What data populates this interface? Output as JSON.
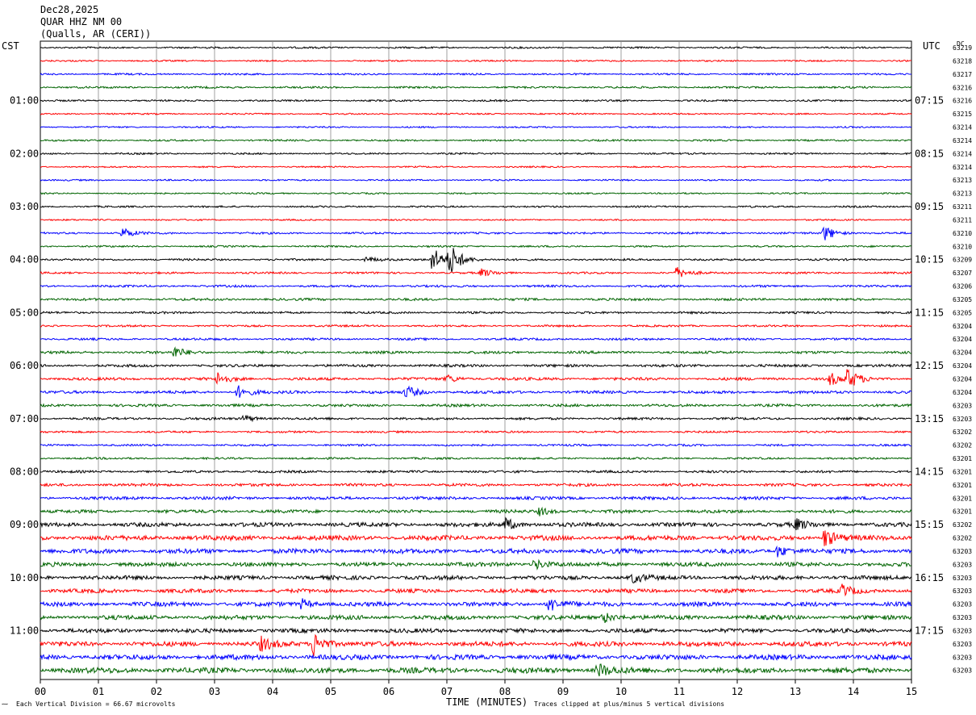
{
  "header": {
    "date": "Dec28,2025",
    "station": "QUAR HHZ NM 00",
    "location": "(Qualls, AR (CERI))"
  },
  "left_axis_label": "CST",
  "right_axis_label": "UTC",
  "dc_label": "DC",
  "footer": {
    "division_note": "Each Vertical Division =   66.67 microvolts",
    "xlabel": "TIME (MINUTES)",
    "clip_note": "Traces clipped at plus/minus 5 vertical divisions"
  },
  "chart_data": {
    "type": "line",
    "title": "QUAR HHZ NM 00",
    "xlabel": "TIME (MINUTES)",
    "xlim": [
      0,
      15
    ],
    "x_ticks": [
      "00",
      "01",
      "02",
      "03",
      "04",
      "05",
      "06",
      "07",
      "08",
      "09",
      "10",
      "11",
      "12",
      "13",
      "14",
      "15"
    ],
    "trace_count": 48,
    "trace_colors": [
      "#000000",
      "#ff0000",
      "#0000ff",
      "#006400"
    ],
    "cst_hour_labels": [
      "01:00",
      "02:00",
      "03:00",
      "04:00",
      "05:00",
      "06:00",
      "07:00",
      "08:00",
      "09:00",
      "10:00",
      "11:00"
    ],
    "utc_labels": [
      "07:15",
      "08:15",
      "09:15",
      "10:15",
      "11:15",
      "12:15",
      "13:15",
      "14:15",
      "15:15",
      "16:15",
      "17:15"
    ],
    "hour_label_trace_start": 4,
    "dc_values": [
      "63219",
      "63218",
      "63217",
      "63216",
      "63216",
      "63215",
      "63214",
      "63214",
      "63214",
      "63214",
      "63213",
      "63213",
      "63211",
      "63211",
      "63210",
      "63210",
      "63209",
      "63207",
      "63206",
      "63205",
      "63205",
      "63204",
      "63204",
      "63204",
      "63204",
      "63204",
      "63204",
      "63203",
      "63203",
      "63202",
      "63202",
      "63201",
      "63201",
      "63201",
      "63201",
      "63201",
      "63202",
      "63202",
      "63203",
      "63203",
      "63203",
      "63203",
      "63203",
      "63203",
      "63203",
      "63203",
      "63203",
      "63203"
    ],
    "noise_level": [
      0.8,
      0.7,
      0.8,
      0.9,
      0.8,
      0.7,
      0.7,
      0.8,
      0.8,
      0.7,
      0.7,
      0.7,
      0.8,
      0.7,
      0.9,
      0.8,
      0.9,
      0.9,
      1.0,
      1.1,
      1.0,
      0.9,
      1.0,
      1.2,
      1.2,
      1.3,
      1.3,
      1.2,
      1.1,
      0.9,
      0.9,
      0.9,
      1.1,
      1.3,
      1.4,
      1.5,
      1.9,
      2.2,
      2.1,
      1.9,
      1.9,
      1.8,
      2.0,
      2.0,
      1.9,
      2.2,
      2.3,
      2.5
    ],
    "events": [
      {
        "trace": 14,
        "minute": 1.4,
        "amplitude": 7
      },
      {
        "trace": 14,
        "minute": 13.5,
        "amplitude": 10
      },
      {
        "trace": 16,
        "minute": 5.6,
        "amplitude": 4
      },
      {
        "trace": 16,
        "minute": 6.75,
        "amplitude": 16
      },
      {
        "trace": 16,
        "minute": 7.05,
        "amplitude": 20
      },
      {
        "trace": 17,
        "minute": 7.6,
        "amplitude": 5
      },
      {
        "trace": 17,
        "minute": 10.95,
        "amplitude": 7
      },
      {
        "trace": 23,
        "minute": 2.3,
        "amplitude": 7
      },
      {
        "trace": 25,
        "minute": 3.05,
        "amplitude": 8
      },
      {
        "trace": 25,
        "minute": 7.0,
        "amplitude": 5
      },
      {
        "trace": 25,
        "minute": 13.6,
        "amplitude": 8
      },
      {
        "trace": 25,
        "minute": 13.9,
        "amplitude": 12
      },
      {
        "trace": 26,
        "minute": 3.4,
        "amplitude": 8
      },
      {
        "trace": 26,
        "minute": 6.3,
        "amplitude": 8
      },
      {
        "trace": 28,
        "minute": 3.5,
        "amplitude": 5
      },
      {
        "trace": 35,
        "minute": 8.6,
        "amplitude": 5
      },
      {
        "trace": 36,
        "minute": 8.0,
        "amplitude": 8
      },
      {
        "trace": 36,
        "minute": 13.0,
        "amplitude": 7
      },
      {
        "trace": 37,
        "minute": 13.5,
        "amplitude": 12
      },
      {
        "trace": 38,
        "minute": 12.7,
        "amplitude": 8
      },
      {
        "trace": 39,
        "minute": 8.5,
        "amplitude": 7
      },
      {
        "trace": 40,
        "minute": 10.2,
        "amplitude": 6
      },
      {
        "trace": 41,
        "minute": 13.8,
        "amplitude": 7
      },
      {
        "trace": 42,
        "minute": 4.5,
        "amplitude": 6
      },
      {
        "trace": 42,
        "minute": 8.75,
        "amplitude": 10
      },
      {
        "trace": 43,
        "minute": 9.7,
        "amplitude": 7
      },
      {
        "trace": 45,
        "minute": 3.8,
        "amplitude": 8
      },
      {
        "trace": 45,
        "minute": 4.7,
        "amplitude": 16
      },
      {
        "trace": 47,
        "minute": 9.6,
        "amplitude": 9
      }
    ]
  }
}
